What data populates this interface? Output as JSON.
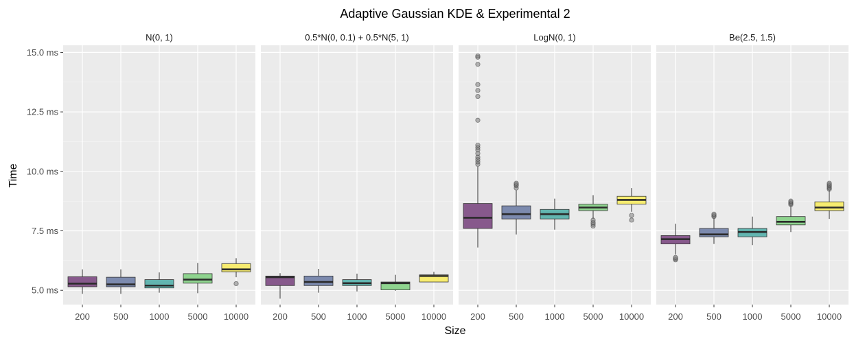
{
  "chart_data": {
    "type": "box",
    "title": "Adaptive Gaussian KDE & Experimental 2",
    "xlabel": "Size",
    "ylabel": "Time",
    "ylim": [
      4.4,
      15.3
    ],
    "yticks": [
      5.0,
      7.5,
      10.0,
      12.5,
      15.0
    ],
    "ytick_labels": [
      "5.0 ms",
      "7.5 ms",
      "10.0 ms",
      "12.5 ms",
      "15.0 ms"
    ],
    "categories": [
      "200",
      "500",
      "1000",
      "5000",
      "10000"
    ],
    "colors": [
      "#87598c",
      "#7c8aae",
      "#62b5b0",
      "#8fd48f",
      "#f7ec70"
    ],
    "background": "#ebebeb",
    "grid": true,
    "panels": [
      {
        "label": "N(0, 1)",
        "boxes": [
          {
            "category": "200",
            "whisker_low": 4.85,
            "q1": 5.15,
            "median": 5.28,
            "q3": 5.57,
            "whisker_high": 5.88,
            "outliers": []
          },
          {
            "category": "500",
            "whisker_low": 4.85,
            "q1": 5.15,
            "median": 5.25,
            "q3": 5.55,
            "whisker_high": 5.88,
            "outliers": []
          },
          {
            "category": "1000",
            "whisker_low": 4.9,
            "q1": 5.1,
            "median": 5.2,
            "q3": 5.45,
            "whisker_high": 5.75,
            "outliers": []
          },
          {
            "category": "5000",
            "whisker_low": 4.88,
            "q1": 5.3,
            "median": 5.45,
            "q3": 5.7,
            "whisker_high": 6.15,
            "outliers": []
          },
          {
            "category": "10000",
            "whisker_low": 5.55,
            "q1": 5.78,
            "median": 5.88,
            "q3": 6.12,
            "whisker_high": 6.35,
            "outliers": [
              5.28
            ]
          }
        ]
      },
      {
        "label": "0.5*N(0, 0.1) + 0.5*N(5, 1)",
        "boxes": [
          {
            "category": "200",
            "whisker_low": 4.65,
            "q1": 5.2,
            "median": 5.55,
            "q3": 5.6,
            "whisker_high": 5.72,
            "outliers": []
          },
          {
            "category": "500",
            "whisker_low": 4.9,
            "q1": 5.2,
            "median": 5.35,
            "q3": 5.6,
            "whisker_high": 5.9,
            "outliers": []
          },
          {
            "category": "1000",
            "whisker_low": 4.95,
            "q1": 5.2,
            "median": 5.3,
            "q3": 5.45,
            "whisker_high": 5.7,
            "outliers": []
          },
          {
            "category": "5000",
            "whisker_low": 4.98,
            "q1": 5.02,
            "median": 5.3,
            "q3": 5.35,
            "whisker_high": 5.65,
            "outliers": []
          },
          {
            "category": "10000",
            "whisker_low": 5.35,
            "q1": 5.35,
            "median": 5.6,
            "q3": 5.65,
            "whisker_high": 5.78,
            "outliers": []
          }
        ]
      },
      {
        "label": "LogN(0, 1)",
        "boxes": [
          {
            "category": "200",
            "whisker_low": 6.8,
            "q1": 7.6,
            "median": 8.05,
            "q3": 8.65,
            "whisker_high": 10.2,
            "outliers": [
              10.3,
              10.4,
              10.5,
              10.6,
              10.75,
              10.9,
              11.0,
              11.1,
              12.15,
              13.15,
              13.4,
              13.65,
              14.5,
              14.8,
              14.85
            ]
          },
          {
            "category": "500",
            "whisker_low": 7.35,
            "q1": 8.0,
            "median": 8.2,
            "q3": 8.55,
            "whisker_high": 9.2,
            "outliers": [
              9.3,
              9.4,
              9.45,
              9.5
            ]
          },
          {
            "category": "1000",
            "whisker_low": 7.55,
            "q1": 8.0,
            "median": 8.2,
            "q3": 8.4,
            "whisker_high": 8.85,
            "outliers": []
          },
          {
            "category": "5000",
            "whisker_low": 8.0,
            "q1": 8.35,
            "median": 8.48,
            "q3": 8.62,
            "whisker_high": 9.0,
            "outliers": [
              7.7,
              7.78,
              7.85,
              7.95
            ]
          },
          {
            "category": "10000",
            "whisker_low": 8.3,
            "q1": 8.62,
            "median": 8.8,
            "q3": 8.95,
            "whisker_high": 9.3,
            "outliers": [
              7.95,
              8.15
            ]
          }
        ]
      },
      {
        "label": "Be(2.5, 1.5)",
        "boxes": [
          {
            "category": "200",
            "whisker_low": 6.5,
            "q1": 6.95,
            "median": 7.15,
            "q3": 7.3,
            "whisker_high": 7.8,
            "outliers": [
              6.28,
              6.33,
              6.38
            ]
          },
          {
            "category": "500",
            "whisker_low": 6.95,
            "q1": 7.25,
            "median": 7.35,
            "q3": 7.6,
            "whisker_high": 8.05,
            "outliers": [
              8.1,
              8.15,
              8.2
            ]
          },
          {
            "category": "1000",
            "whisker_low": 6.9,
            "q1": 7.25,
            "median": 7.45,
            "q3": 7.6,
            "whisker_high": 8.1,
            "outliers": []
          },
          {
            "category": "5000",
            "whisker_low": 7.45,
            "q1": 7.75,
            "median": 7.88,
            "q3": 8.1,
            "whisker_high": 8.55,
            "outliers": [
              8.6,
              8.65,
              8.7,
              8.75
            ]
          },
          {
            "category": "10000",
            "whisker_low": 8.0,
            "q1": 8.35,
            "median": 8.48,
            "q3": 8.72,
            "whisker_high": 9.2,
            "outliers": [
              9.25,
              9.3,
              9.35,
              9.4,
              9.45,
              9.5
            ]
          }
        ]
      }
    ]
  }
}
